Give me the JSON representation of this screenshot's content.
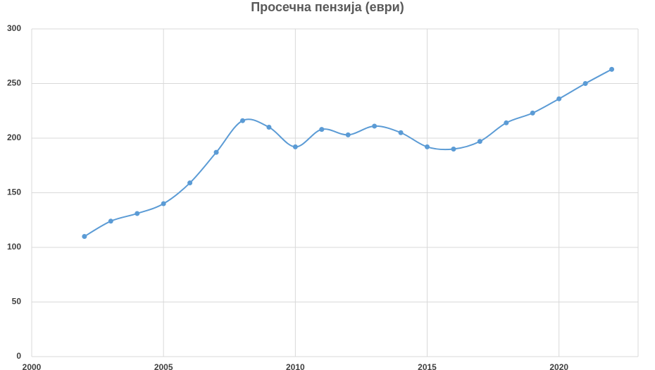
{
  "chart_data": {
    "type": "line",
    "title": "Просечна пензија (еври)",
    "x": [
      2002,
      2003,
      2004,
      2005,
      2006,
      2007,
      2008,
      2009,
      2010,
      2011,
      2012,
      2013,
      2014,
      2015,
      2016,
      2017,
      2018,
      2019,
      2020,
      2021,
      2022
    ],
    "values": [
      110,
      124,
      131,
      140,
      159,
      187,
      216,
      210,
      192,
      208,
      203,
      211,
      205,
      192,
      190,
      197,
      214,
      223,
      236,
      250,
      263
    ],
    "color": "#5b9bd5",
    "smooth": true,
    "xlim": [
      2000,
      2023
    ],
    "xticks": [
      2000,
      2005,
      2010,
      2015,
      2020
    ],
    "ylim": [
      0,
      300
    ],
    "yticks": [
      0,
      50,
      100,
      150,
      200,
      250,
      300
    ],
    "grid": true
  }
}
